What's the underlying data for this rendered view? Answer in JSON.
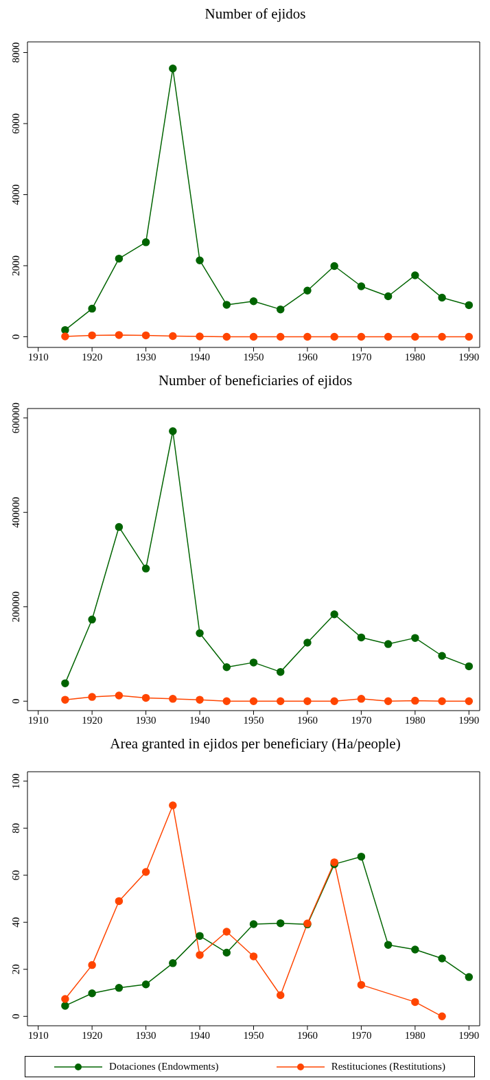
{
  "chart_data": [
    {
      "type": "line",
      "title": "Number of ejidos",
      "x": [
        1915,
        1920,
        1925,
        1930,
        1935,
        1940,
        1945,
        1950,
        1955,
        1960,
        1965,
        1970,
        1975,
        1980,
        1985,
        1990
      ],
      "xlim": [
        1908,
        1992
      ],
      "xticks": [
        1910,
        1920,
        1930,
        1940,
        1950,
        1960,
        1970,
        1980,
        1990
      ],
      "ylim": [
        -300,
        8300
      ],
      "yticks": [
        0,
        2000,
        4000,
        6000,
        8000
      ],
      "marker": "circle",
      "legend": false,
      "series": [
        {
          "color": "#006400",
          "values": [
            190,
            790,
            2200,
            2660,
            7550,
            2150,
            900,
            1000,
            770,
            1300,
            1990,
            1420,
            1140,
            1730,
            1100,
            890
          ]
        },
        {
          "color": "#ff4500",
          "values": [
            10,
            40,
            50,
            40,
            20,
            10,
            0,
            0,
            0,
            0,
            0,
            0,
            0,
            0,
            0,
            0
          ]
        }
      ]
    },
    {
      "type": "line",
      "title": "Number of beneficiaries of ejidos",
      "x": [
        1915,
        1920,
        1925,
        1930,
        1935,
        1940,
        1945,
        1950,
        1955,
        1960,
        1965,
        1970,
        1975,
        1980,
        1985,
        1990
      ],
      "xlim": [
        1908,
        1992
      ],
      "xticks": [
        1910,
        1920,
        1930,
        1940,
        1950,
        1960,
        1970,
        1980,
        1990
      ],
      "ylim": [
        -20000,
        620000
      ],
      "yticks": [
        0,
        200000,
        400000,
        600000
      ],
      "marker": "circle",
      "legend": false,
      "series": [
        {
          "color": "#006400",
          "values": [
            38000,
            173000,
            369000,
            281000,
            572000,
            144000,
            72000,
            82000,
            62000,
            124000,
            184000,
            135000,
            121000,
            134000,
            96000,
            74000
          ]
        },
        {
          "color": "#ff4500",
          "values": [
            3000,
            9000,
            12000,
            7000,
            5000,
            3000,
            0,
            0,
            0,
            0,
            0,
            5000,
            0,
            1000,
            0,
            0
          ]
        }
      ]
    },
    {
      "type": "line",
      "title": "Area granted in ejidos per beneficiary (Ha/people)",
      "xlim": [
        1908,
        1992
      ],
      "xticks": [
        1910,
        1920,
        1930,
        1940,
        1950,
        1960,
        1970,
        1980,
        1990
      ],
      "ylim": [
        -4,
        104
      ],
      "yticks": [
        0,
        20,
        40,
        60,
        80,
        100
      ],
      "marker": "circle",
      "legend": "bottom",
      "series": [
        {
          "name": "Dotaciones (Endowments)",
          "color": "#006400",
          "x": [
            1915,
            1920,
            1925,
            1930,
            1935,
            1940,
            1945,
            1950,
            1955,
            1960,
            1965,
            1970,
            1975,
            1980,
            1985,
            1990
          ],
          "values": [
            4.5,
            9.8,
            12.1,
            13.6,
            22.6,
            34.2,
            27.1,
            39.2,
            39.6,
            39.1,
            64.7,
            67.9,
            30.4,
            28.4,
            24.6,
            16.7
          ]
        },
        {
          "name": "Restituciones (Restitutions)",
          "color": "#ff4500",
          "x": [
            1915,
            1920,
            1925,
            1930,
            1935,
            1940,
            1945,
            1950,
            1955,
            1960,
            1965,
            1970,
            1980,
            1985
          ],
          "values": [
            7.4,
            21.8,
            49,
            61.4,
            89.7,
            26.1,
            36,
            25.5,
            9,
            39.5,
            65.5,
            13.4,
            6.1,
            0
          ]
        }
      ]
    }
  ]
}
